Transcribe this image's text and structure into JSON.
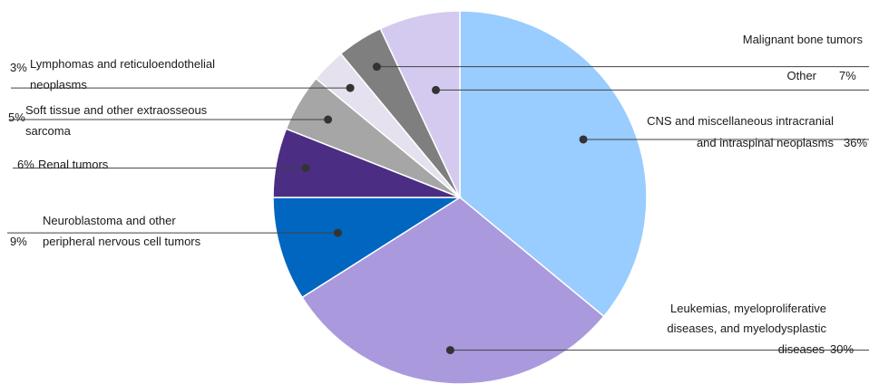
{
  "chart_data": {
    "type": "pie",
    "title": "",
    "slices": [
      {
        "label_lines": [
          "CNS and miscellaneous intracranial",
          "and intraspinal neoplasms"
        ],
        "pct_label": "36%",
        "value": 36,
        "color": "#99ccff"
      },
      {
        "label_lines": [
          "Leukemias, myeloproliferative",
          "diseases, and myelodysplastic",
          "diseases"
        ],
        "pct_label": "30%",
        "value": 30,
        "color": "#aa99dd"
      },
      {
        "label_lines": [
          "Neuroblastoma and other",
          "peripheral nervous cell tumors"
        ],
        "pct_label": "9%",
        "value": 9,
        "color": "#0066c0"
      },
      {
        "label_lines": [
          "Renal tumors"
        ],
        "pct_label": "6%",
        "value": 6,
        "color": "#4b2e83"
      },
      {
        "label_lines": [
          "Soft tissue and other extraosseous",
          "sarcoma"
        ],
        "pct_label": "5%",
        "value": 5,
        "color": "#a6a6a6"
      },
      {
        "label_lines": [
          "Lymphomas and reticuloendothelial",
          "neoplasms"
        ],
        "pct_label": "3%",
        "value": 3,
        "color": "#e6e1ee"
      },
      {
        "label_lines": [
          "Malignant bone tumors"
        ],
        "pct_label": "",
        "value": 4,
        "color": "#7f7f7f"
      },
      {
        "label_lines": [
          "Other"
        ],
        "pct_label": "7%",
        "value": 7,
        "color": "#d4c9ef"
      }
    ]
  }
}
